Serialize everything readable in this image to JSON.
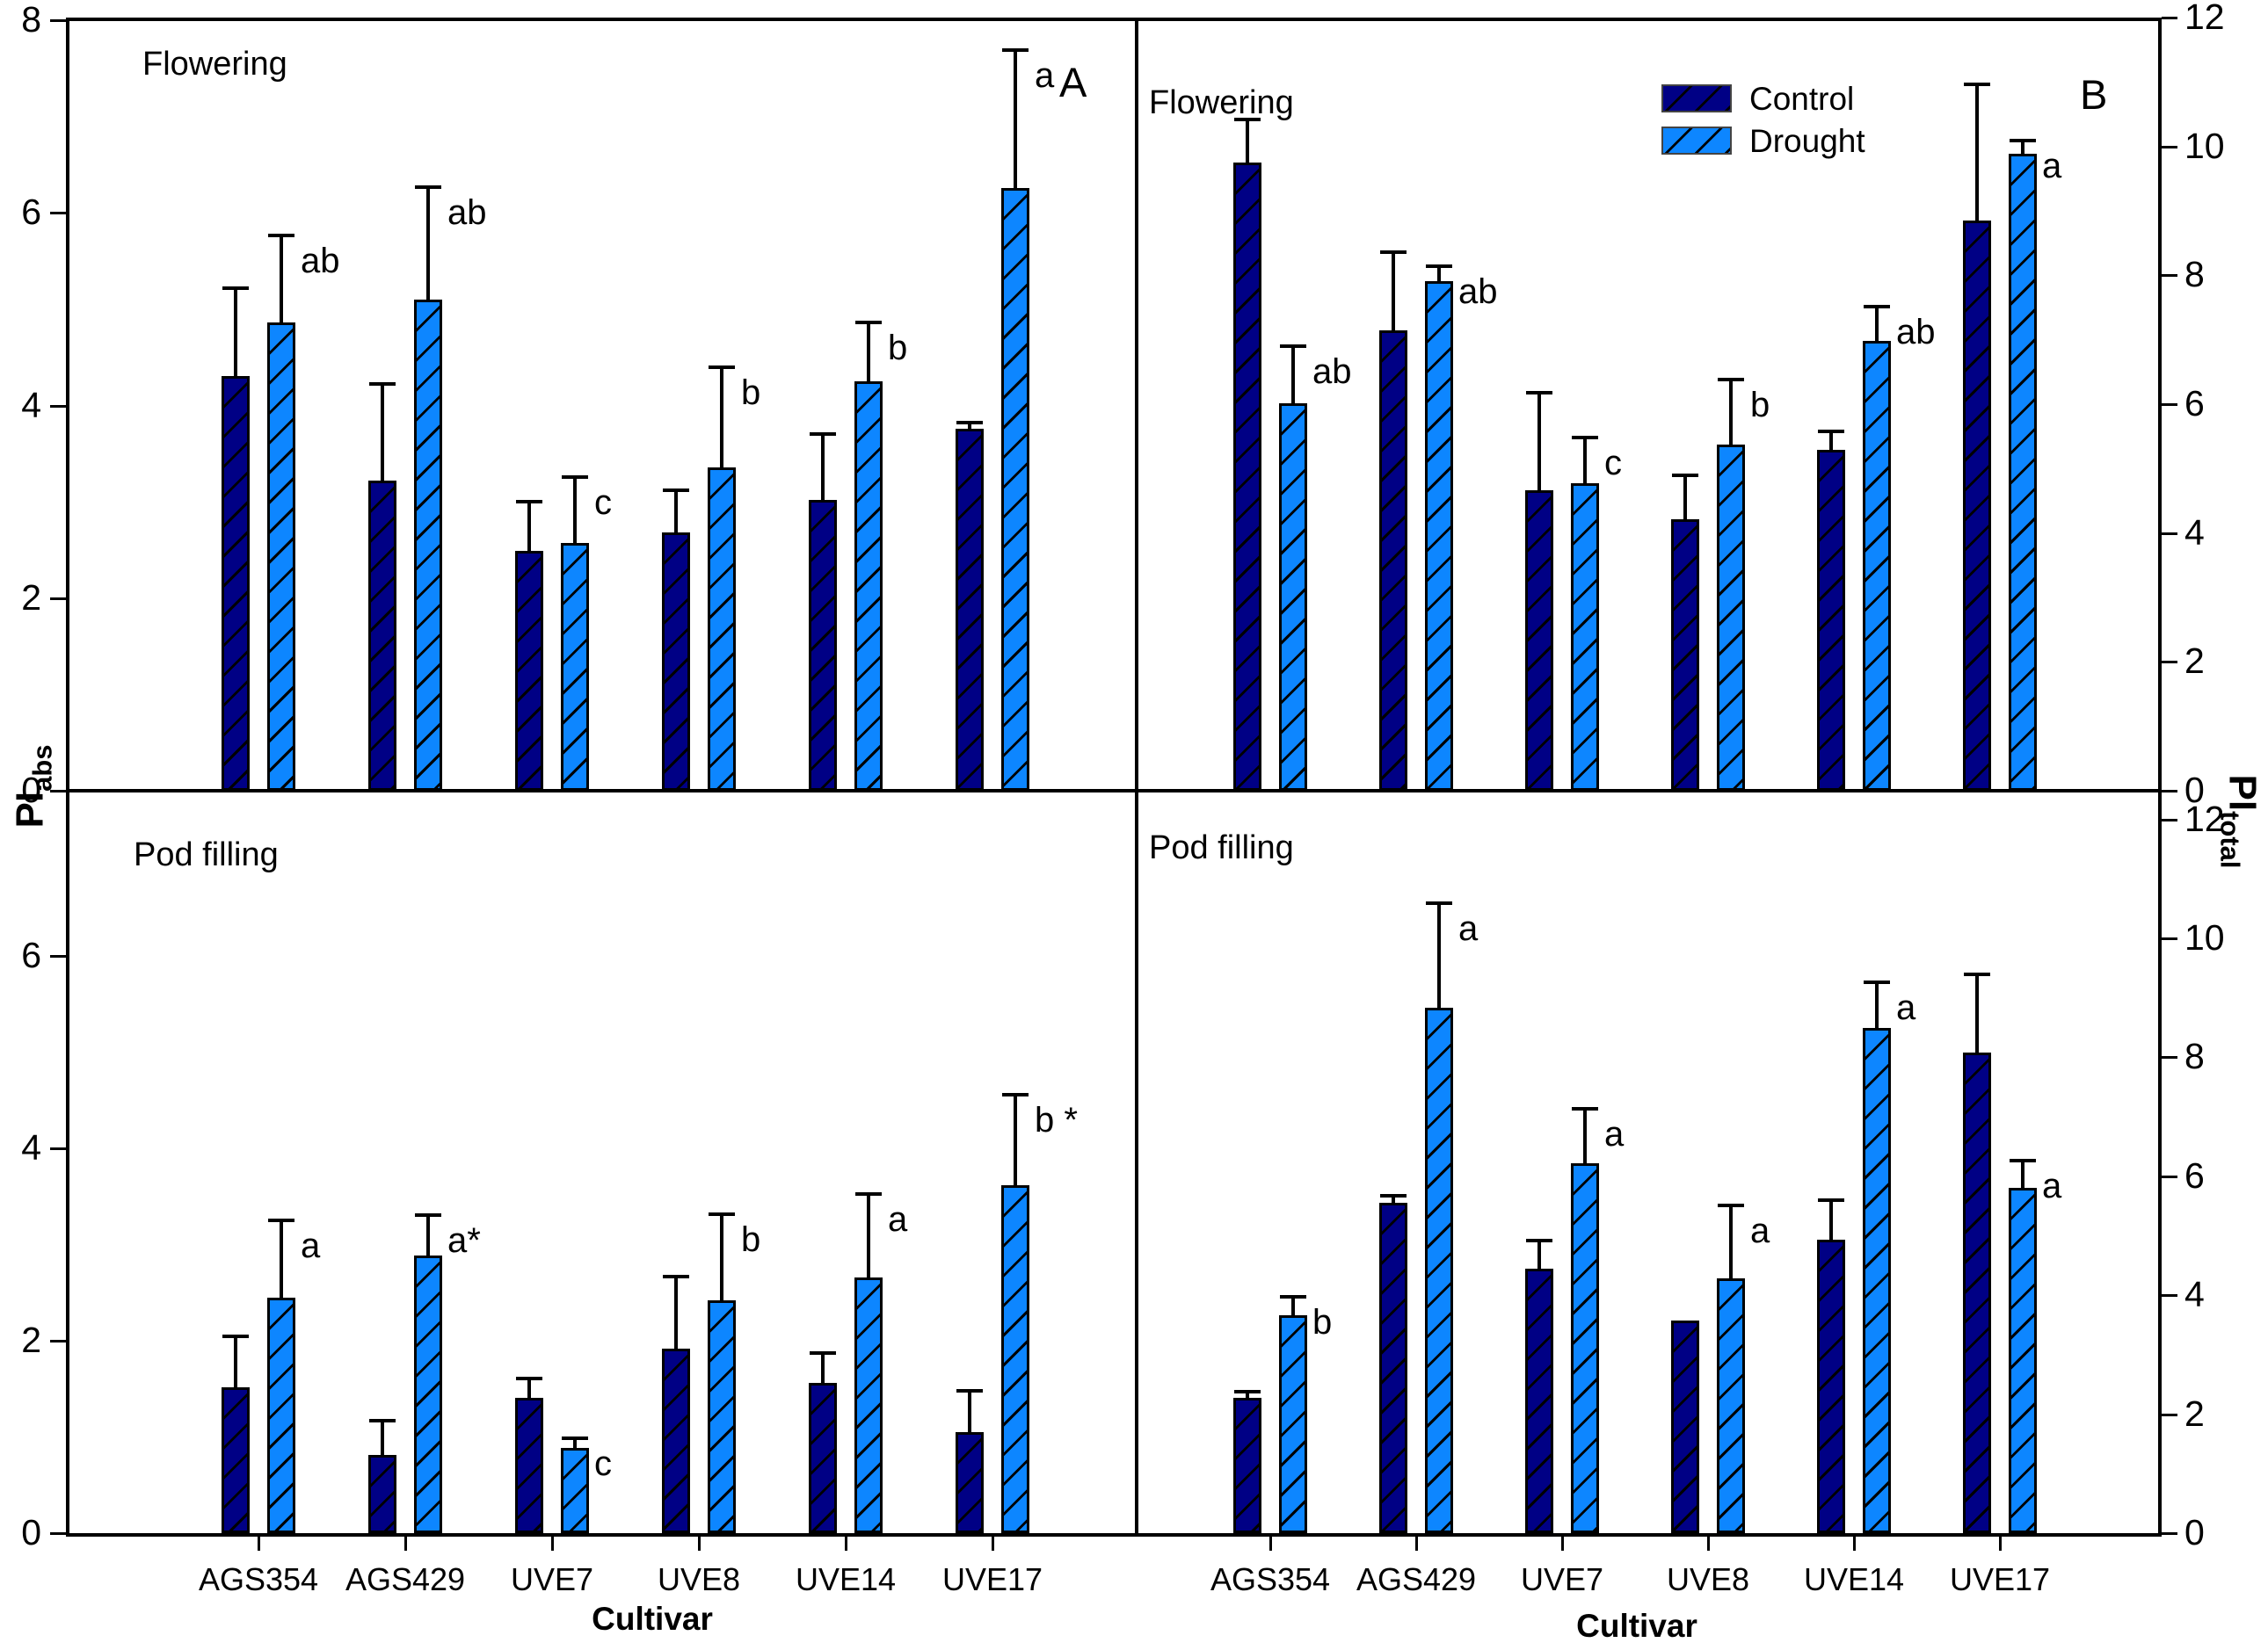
{
  "figure": {
    "x_axis_title": "Cultivar",
    "y_left_label": {
      "base": "PI",
      "sub": "abs"
    },
    "y_right_label": {
      "base": "PI",
      "sub": "total"
    },
    "categories": [
      "AGS354",
      "AGS429",
      "UVE7",
      "UVE8",
      "UVE14",
      "UVE17"
    ],
    "legend": {
      "position": "top-right-panel-B",
      "items": [
        {
          "label": "Control",
          "color": "#000085"
        },
        {
          "label": "Drought",
          "color": "#0d86ff"
        }
      ]
    },
    "hatch_color": "#000000",
    "axis_color": "#000000"
  },
  "chart_data": [
    {
      "type": "bar",
      "panel_letter": "A",
      "title": "Flowering",
      "ylabel": "PIabs",
      "axis_side": "left",
      "ylim": [
        0,
        8.03
      ],
      "yticks": [
        0,
        2,
        4,
        6,
        8
      ],
      "grid": false,
      "categories": [
        "AGS354",
        "AGS429",
        "UVE7",
        "UVE8",
        "UVE14",
        "UVE17"
      ],
      "series": [
        {
          "name": "Control",
          "values": [
            4.31,
            3.22,
            2.49,
            2.68,
            3.02,
            3.76
          ],
          "errors": [
            0.9,
            1.0,
            0.5,
            0.43,
            0.68,
            0.05
          ]
        },
        {
          "name": "Drought",
          "values": [
            4.86,
            5.1,
            2.57,
            3.36,
            4.25,
            6.26
          ],
          "errors": [
            0.9,
            1.16,
            0.68,
            1.03,
            0.6,
            1.42
          ]
        }
      ],
      "sig_letters": [
        "ab",
        "ab",
        "c",
        "b",
        "b",
        "a"
      ]
    },
    {
      "type": "bar",
      "panel_letter": "B",
      "title": "Flowering",
      "ylabel": "PItotal",
      "axis_side": "right",
      "ylim": [
        0,
        12
      ],
      "yticks": [
        0,
        2,
        4,
        6,
        8,
        10,
        12
      ],
      "grid": false,
      "categories": [
        "AGS354",
        "AGS429",
        "UVE7",
        "UVE8",
        "UVE14",
        "UVE17"
      ],
      "series": [
        {
          "name": "Control",
          "values": [
            9.75,
            7.15,
            4.67,
            4.22,
            5.29,
            8.85
          ],
          "errors": [
            0.65,
            1.2,
            1.5,
            0.66,
            0.28,
            2.1
          ]
        },
        {
          "name": "Drought",
          "values": [
            6.02,
            7.91,
            4.77,
            5.37,
            6.98,
            9.88
          ],
          "errors": [
            0.87,
            0.22,
            0.7,
            1.0,
            0.52,
            0.2
          ]
        }
      ],
      "sig_letters": [
        "ab",
        "ab",
        "c",
        "b",
        "ab",
        "a"
      ]
    },
    {
      "type": "bar",
      "panel_letter": "",
      "title": "Pod filling",
      "ylabel": "PIabs",
      "axis_side": "left",
      "ylim": [
        0,
        7.72
      ],
      "yticks": [
        0,
        2,
        4,
        6
      ],
      "grid": false,
      "categories": [
        "AGS354",
        "AGS429",
        "UVE7",
        "UVE8",
        "UVE14",
        "UVE17"
      ],
      "series": [
        {
          "name": "Control",
          "values": [
            1.52,
            0.81,
            1.41,
            1.92,
            1.56,
            1.05
          ],
          "errors": [
            0.52,
            0.35,
            0.19,
            0.74,
            0.3,
            0.42
          ]
        },
        {
          "name": "Drought",
          "values": [
            2.45,
            2.89,
            0.89,
            2.42,
            2.66,
            3.62
          ],
          "errors": [
            0.79,
            0.41,
            0.09,
            0.89,
            0.86,
            0.93
          ]
        }
      ],
      "sig_letters": [
        "a",
        "a*",
        "c",
        "b",
        "a",
        "b *"
      ]
    },
    {
      "type": "bar",
      "panel_letter": "",
      "title": "Pod filling",
      "ylabel": "PItotal",
      "axis_side": "right",
      "ylim": [
        0,
        12.48
      ],
      "yticks": [
        0,
        2,
        4,
        6,
        8,
        10,
        12
      ],
      "grid": false,
      "categories": [
        "AGS354",
        "AGS429",
        "UVE7",
        "UVE8",
        "UVE14",
        "UVE17"
      ],
      "series": [
        {
          "name": "Control",
          "values": [
            2.27,
            5.55,
            4.45,
            3.58,
            4.94,
            8.08
          ],
          "errors": [
            0.1,
            0.1,
            0.45,
            0,
            0.65,
            1.3
          ]
        },
        {
          "name": "Drought",
          "values": [
            3.66,
            8.83,
            6.22,
            4.29,
            8.49,
            5.8
          ],
          "errors": [
            0.3,
            1.75,
            0.9,
            1.2,
            0.75,
            0.45
          ]
        }
      ],
      "sig_letters": [
        "b",
        "a",
        "a",
        "a",
        "a",
        "a"
      ]
    }
  ]
}
